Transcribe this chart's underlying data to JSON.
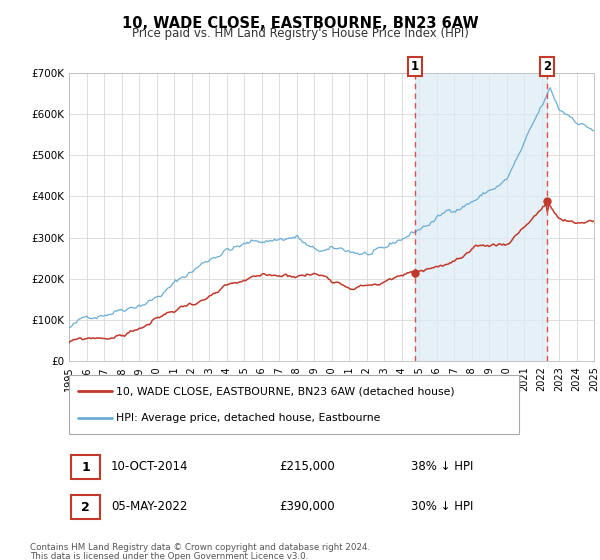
{
  "title": "10, WADE CLOSE, EASTBOURNE, BN23 6AW",
  "subtitle": "Price paid vs. HM Land Registry's House Price Index (HPI)",
  "ylim": [
    0,
    700000
  ],
  "yticks": [
    0,
    100000,
    200000,
    300000,
    400000,
    500000,
    600000,
    700000
  ],
  "ytick_labels": [
    "£0",
    "£100K",
    "£200K",
    "£300K",
    "£400K",
    "£500K",
    "£600K",
    "£700K"
  ],
  "hpi_color": "#6aaed6",
  "hpi_fill_color": "#daeaf5",
  "price_color": "#c0392b",
  "vline_color": "#d9534f",
  "point1_date": 2014.78,
  "point1_price": 215000,
  "point2_date": 2022.34,
  "point2_price": 390000,
  "legend_label1": "10, WADE CLOSE, EASTBOURNE, BN23 6AW (detached house)",
  "legend_label2": "HPI: Average price, detached house, Eastbourne",
  "table_row1": [
    "1",
    "10-OCT-2014",
    "£215,000",
    "38% ↓ HPI"
  ],
  "table_row2": [
    "2",
    "05-MAY-2022",
    "£390,000",
    "30% ↓ HPI"
  ],
  "footer1": "Contains HM Land Registry data © Crown copyright and database right 2024.",
  "footer2": "This data is licensed under the Open Government Licence v3.0.",
  "background_color": "#ffffff",
  "grid_color": "#d8d8d8",
  "xmin": 1995,
  "xmax": 2025
}
